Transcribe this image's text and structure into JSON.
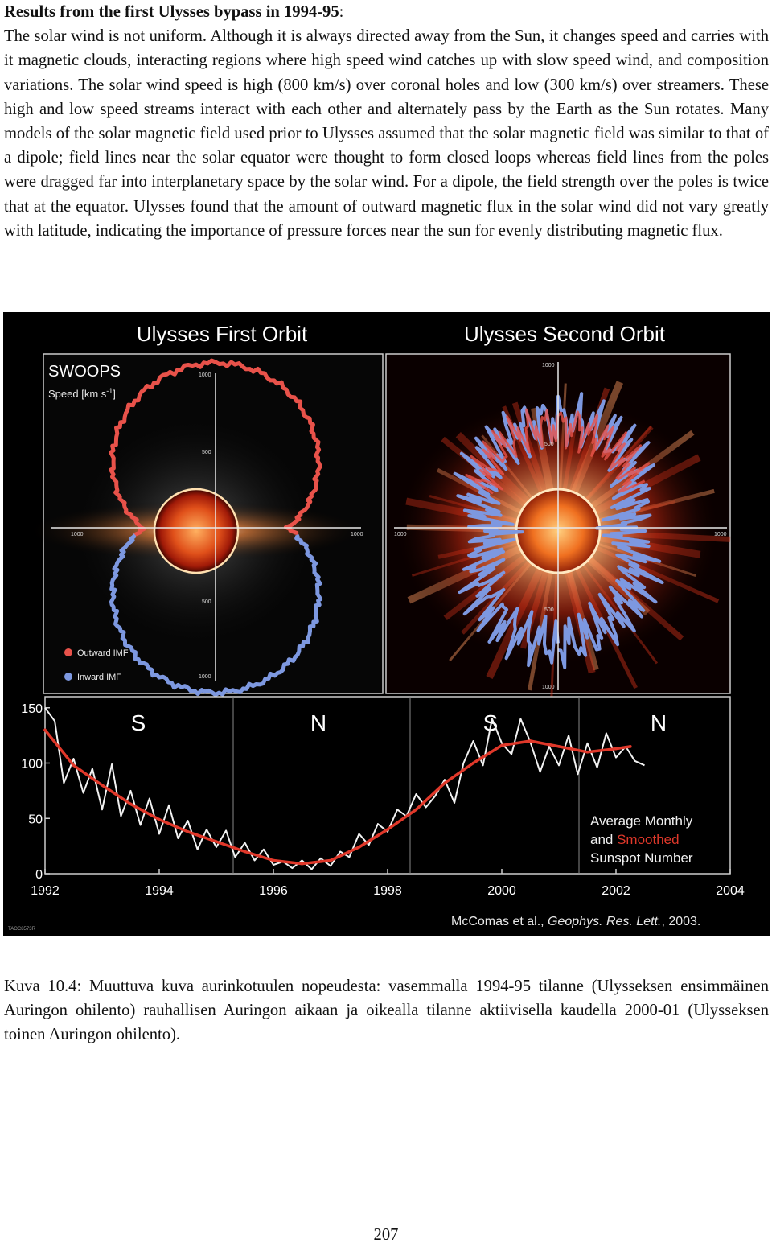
{
  "heading": {
    "bold": "Results from the first Ulysses bypass in 1994-95",
    "suffix": ":"
  },
  "paragraph": "The solar wind is not uniform. Although it is always directed away from the Sun, it changes speed and carries with it magnetic clouds, interacting regions where high speed wind catches up with slow speed wind, and composition variations. The solar wind speed is high (800 km/s) over coronal holes and low (300 km/s) over streamers. These high and low speed streams interact with each other and alternately pass by the Earth as the Sun rotates. Many models of the solar magnetic field used prior to Ulysses assumed that the solar magnetic field was similar to that of a dipole; field lines near the solar equator were thought to form closed loops whereas field lines from the poles were dragged far into interplanetary space by the solar wind. For a dipole, the field strength over the poles is twice that at the equator. Ulysses found that the amount of outward magnetic flux in the solar wind did not vary greatly with latitude, indicating the importance of pressure forces near the sun for evenly distributing magnetic flux.",
  "figure": {
    "left_panel": {
      "title": "Ulysses First Orbit",
      "instrument": "SWOOPS",
      "speed_label": "Speed [km s",
      "speed_label_sup": "-1",
      "speed_label_end": "]",
      "axis_labels": {
        "top": "1000",
        "upper": "500",
        "left": "1000",
        "right": "1000",
        "lower": "500",
        "bottom": "1000"
      },
      "legend": [
        {
          "label": "Outward IMF",
          "color": "#e8524a"
        },
        {
          "label": "Inward IMF",
          "color": "#7d98e0"
        }
      ]
    },
    "right_panel": {
      "title": "Ulysses Second Orbit",
      "axis_labels": {
        "top": "1000",
        "upper": "500",
        "left": "1000",
        "right": "1000",
        "lower": "500",
        "bottom": "1000"
      }
    },
    "colors": {
      "outward": "#e8524a",
      "inward": "#7d98e0",
      "smoothed": "#e0382a",
      "monthly": "#f2f2f2"
    },
    "sunspot_chart": {
      "hemisphere_labels": [
        "S",
        "N",
        "S",
        "N"
      ],
      "annotation": {
        "line1": "Average Monthly",
        "line2_prefix": "and ",
        "line2_highlight": "Smoothed",
        "line3": "Sunspot Number"
      },
      "credit_prefix": "McComas et al., ",
      "credit_journal": "Geophys. Res. Lett.",
      "credit_suffix": ", 2003.",
      "image_id": "TAOC8573R"
    }
  },
  "chart_data": {
    "type": "line",
    "title": "",
    "xlabel": "",
    "ylabel": "",
    "xlim": [
      1992,
      2004
    ],
    "ylim": [
      0,
      160
    ],
    "x_ticks": [
      "1992",
      "1994",
      "1996",
      "1998",
      "2000",
      "2002",
      "2004"
    ],
    "y_ticks": [
      "0",
      "50",
      "100",
      "150"
    ],
    "grid": false,
    "series": [
      {
        "name": "Average Monthly",
        "color": "#f2f2f2",
        "x": [
          1992.0,
          1992.17,
          1992.33,
          1992.5,
          1992.67,
          1992.83,
          1993.0,
          1993.17,
          1993.33,
          1993.5,
          1993.67,
          1993.83,
          1994.0,
          1994.17,
          1994.33,
          1994.5,
          1994.67,
          1994.83,
          1995.0,
          1995.17,
          1995.33,
          1995.5,
          1995.67,
          1995.83,
          1996.0,
          1996.17,
          1996.33,
          1996.5,
          1996.67,
          1996.83,
          1997.0,
          1997.17,
          1997.33,
          1997.5,
          1997.67,
          1997.83,
          1998.0,
          1998.17,
          1998.33,
          1998.5,
          1998.67,
          1998.83,
          1999.0,
          1999.17,
          1999.33,
          1999.5,
          1999.67,
          1999.83,
          2000.0,
          2000.17,
          2000.33,
          2000.5,
          2000.67,
          2000.83,
          2001.0,
          2001.17,
          2001.33,
          2001.5,
          2001.67,
          2001.83,
          2002.0,
          2002.17,
          2002.33,
          2002.5
        ],
        "values": [
          150,
          138,
          82,
          104,
          73,
          95,
          58,
          99,
          52,
          75,
          44,
          68,
          36,
          62,
          32,
          48,
          22,
          40,
          24,
          39,
          15,
          28,
          12,
          22,
          8,
          11,
          5,
          12,
          4,
          14,
          7,
          20,
          15,
          36,
          26,
          45,
          38,
          58,
          52,
          72,
          60,
          70,
          85,
          64,
          100,
          120,
          98,
          140,
          118,
          108,
          140,
          119,
          92,
          115,
          98,
          125,
          90,
          118,
          96,
          127,
          105,
          115,
          102,
          98
        ]
      },
      {
        "name": "Smoothed",
        "color": "#e0382a",
        "x": [
          1992.0,
          1992.5,
          1993.0,
          1993.5,
          1994.0,
          1994.5,
          1995.0,
          1995.5,
          1996.0,
          1996.5,
          1997.0,
          1997.5,
          1998.0,
          1998.5,
          1999.0,
          1999.5,
          2000.0,
          2000.5,
          2001.0,
          2001.5,
          2002.0,
          2002.25
        ],
        "values": [
          130,
          98,
          80,
          63,
          49,
          38,
          29,
          20,
          12,
          9,
          12,
          24,
          40,
          58,
          82,
          100,
          116,
          120,
          115,
          110,
          113,
          115
        ]
      }
    ]
  },
  "caption": "Kuva 10.4: Muuttuva kuva aurinkotuulen nopeudesta: vasemmalla 1994-95 tilanne (Ulysseksen ensimmäinen Auringon ohilento) rauhallisen Auringon aikaan ja oikealla tilanne aktiivisella kaudella 2000-01 (Ulysseksen toinen Auringon ohilento).",
  "page_number": "207"
}
